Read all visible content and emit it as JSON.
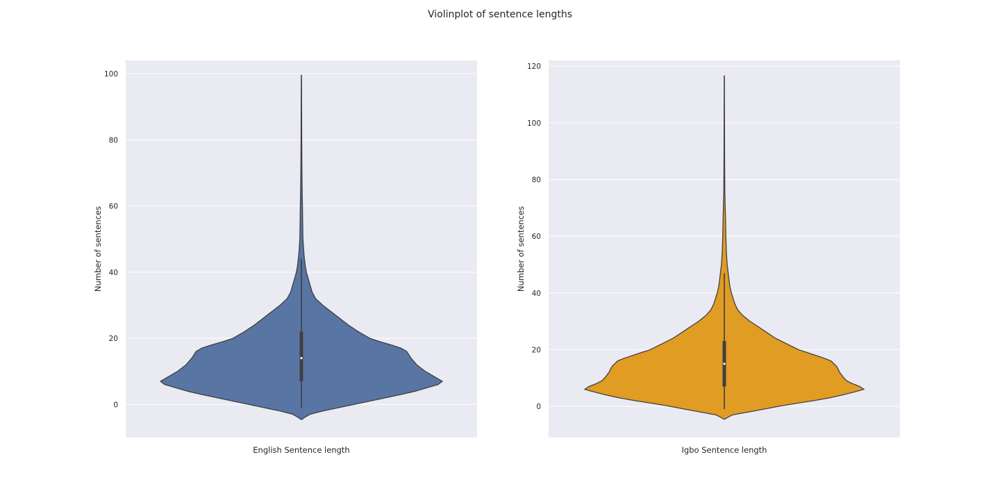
{
  "figure": {
    "title": "Violinplot of sentence lengths"
  },
  "chart_data": [
    {
      "type": "violin",
      "title": "",
      "xlabel": "English Sentence length",
      "ylabel": "Number of sentences",
      "ylim": [
        -10,
        104
      ],
      "yticks": [
        0,
        20,
        40,
        60,
        80,
        100
      ],
      "grid": true,
      "color": "#5875a4",
      "stats": {
        "min": -1,
        "q1": 7,
        "median": 14,
        "q3": 22,
        "max": 44
      },
      "density_profile": [
        [
          -4.5,
          0.005
        ],
        [
          -4,
          0.02
        ],
        [
          -3,
          0.06
        ],
        [
          -2,
          0.15
        ],
        [
          -1,
          0.26
        ],
        [
          0,
          0.37
        ],
        [
          1,
          0.48
        ],
        [
          2,
          0.59
        ],
        [
          3,
          0.7
        ],
        [
          4,
          0.8
        ],
        [
          5,
          0.88
        ],
        [
          6,
          0.96
        ],
        [
          7,
          0.99
        ],
        [
          8,
          0.95
        ],
        [
          10,
          0.87
        ],
        [
          12,
          0.81
        ],
        [
          14,
          0.77
        ],
        [
          16,
          0.74
        ],
        [
          17,
          0.7
        ],
        [
          18,
          0.63
        ],
        [
          19,
          0.55
        ],
        [
          20,
          0.48
        ],
        [
          22,
          0.4
        ],
        [
          24,
          0.33
        ],
        [
          26,
          0.27
        ],
        [
          28,
          0.21
        ],
        [
          30,
          0.15
        ],
        [
          32,
          0.1
        ],
        [
          34,
          0.075
        ],
        [
          36,
          0.062
        ],
        [
          38,
          0.048
        ],
        [
          40,
          0.035
        ],
        [
          42,
          0.027
        ],
        [
          45,
          0.019
        ],
        [
          48,
          0.014
        ],
        [
          50,
          0.011
        ],
        [
          55,
          0.009
        ],
        [
          60,
          0.0075
        ],
        [
          65,
          0.0055
        ],
        [
          70,
          0.004
        ],
        [
          75,
          0.003
        ],
        [
          80,
          0.0025
        ],
        [
          85,
          0.002
        ],
        [
          90,
          0.0015
        ],
        [
          95,
          0.0012
        ],
        [
          99.5,
          0.0008
        ]
      ]
    },
    {
      "type": "violin",
      "title": "",
      "xlabel": "Igbo Sentence length",
      "ylabel": "Number of sentences",
      "ylim": [
        -11,
        122
      ],
      "yticks": [
        0,
        20,
        40,
        60,
        80,
        100,
        120
      ],
      "grid": true,
      "color": "#e09c23",
      "stats": {
        "min": -1,
        "q1": 7,
        "median": 15,
        "q3": 23,
        "max": 47
      },
      "density_profile": [
        [
          -4.5,
          0.005
        ],
        [
          -4,
          0.02
        ],
        [
          -3,
          0.06
        ],
        [
          -2,
          0.17
        ],
        [
          -1,
          0.28
        ],
        [
          0,
          0.38
        ],
        [
          1,
          0.5
        ],
        [
          2,
          0.63
        ],
        [
          3,
          0.74
        ],
        [
          4,
          0.83
        ],
        [
          5,
          0.91
        ],
        [
          6,
          0.98
        ],
        [
          7,
          0.95
        ],
        [
          8,
          0.9
        ],
        [
          9,
          0.86
        ],
        [
          10,
          0.84
        ],
        [
          12,
          0.81
        ],
        [
          14,
          0.79
        ],
        [
          16,
          0.75
        ],
        [
          17,
          0.7
        ],
        [
          18,
          0.64
        ],
        [
          19,
          0.58
        ],
        [
          20,
          0.52
        ],
        [
          22,
          0.44
        ],
        [
          24,
          0.36
        ],
        [
          26,
          0.3
        ],
        [
          28,
          0.24
        ],
        [
          30,
          0.18
        ],
        [
          32,
          0.13
        ],
        [
          34,
          0.095
        ],
        [
          36,
          0.075
        ],
        [
          38,
          0.062
        ],
        [
          40,
          0.05
        ],
        [
          42,
          0.04
        ],
        [
          45,
          0.032
        ],
        [
          48,
          0.025
        ],
        [
          50,
          0.02
        ],
        [
          55,
          0.014
        ],
        [
          60,
          0.011
        ],
        [
          65,
          0.009
        ],
        [
          70,
          0.0065
        ],
        [
          75,
          0.004
        ],
        [
          80,
          0.003
        ],
        [
          90,
          0.002
        ],
        [
          100,
          0.0015
        ],
        [
          110,
          0.001
        ],
        [
          116.5,
          0.0008
        ]
      ]
    }
  ]
}
